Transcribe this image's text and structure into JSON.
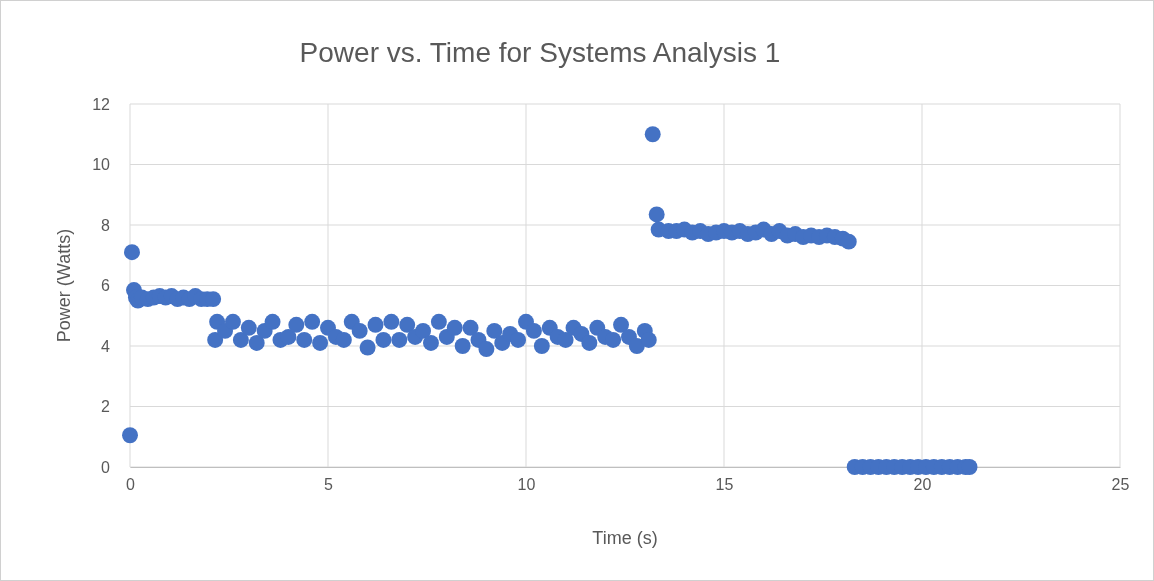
{
  "chart_data": {
    "type": "scatter",
    "title": "Power vs. Time for Systems Analysis 1",
    "xlabel": "Time (s)",
    "ylabel": "Power (Watts)",
    "xlim": [
      0,
      25
    ],
    "xticks": [
      0,
      5,
      10,
      15,
      20,
      25
    ],
    "ylim": [
      0,
      12
    ],
    "yticks": [
      0,
      2,
      4,
      6,
      8,
      10,
      12
    ],
    "grid": true,
    "marker": "circle",
    "series": [
      {
        "color": "#4472c4",
        "x": [
          0,
          0.05,
          0.1,
          0.15,
          0.2,
          0.3,
          0.45,
          0.6,
          0.75,
          0.9,
          1.05,
          1.2,
          1.35,
          1.5,
          1.65,
          1.8,
          1.95,
          2.1,
          2.15,
          2.2,
          2.4,
          2.6,
          2.8,
          3.0,
          3.2,
          3.4,
          3.6,
          3.8,
          4.0,
          4.2,
          4.4,
          4.6,
          4.8,
          5.0,
          5.2,
          5.4,
          5.6,
          5.8,
          6.0,
          6.2,
          6.4,
          6.6,
          6.8,
          7.0,
          7.2,
          7.4,
          7.6,
          7.8,
          8.0,
          8.2,
          8.4,
          8.6,
          8.8,
          9.0,
          9.2,
          9.4,
          9.6,
          9.8,
          10.0,
          10.2,
          10.4,
          10.6,
          10.8,
          11.0,
          11.2,
          11.4,
          11.6,
          11.8,
          12.0,
          12.2,
          12.4,
          12.6,
          12.8,
          13.0,
          13.1,
          13.2,
          13.3,
          13.35,
          13.6,
          13.8,
          14.0,
          14.2,
          14.4,
          14.6,
          14.8,
          15.0,
          15.2,
          15.4,
          15.6,
          15.8,
          16.0,
          16.2,
          16.4,
          16.6,
          16.8,
          17.0,
          17.2,
          17.4,
          17.6,
          17.8,
          18.0,
          18.15,
          18.3,
          18.5,
          18.7,
          18.9,
          19.1,
          19.3,
          19.5,
          19.7,
          19.9,
          20.1,
          20.3,
          20.5,
          20.7,
          20.9,
          21.1,
          21.2
        ],
        "values": [
          1.05,
          7.1,
          5.85,
          5.6,
          5.5,
          5.6,
          5.55,
          5.6,
          5.65,
          5.6,
          5.65,
          5.55,
          5.6,
          5.55,
          5.65,
          5.55,
          5.55,
          5.55,
          4.2,
          4.8,
          4.5,
          4.8,
          4.2,
          4.6,
          4.1,
          4.5,
          4.8,
          4.2,
          4.3,
          4.7,
          4.2,
          4.8,
          4.1,
          4.6,
          4.3,
          4.2,
          4.8,
          4.5,
          3.95,
          4.7,
          4.2,
          4.8,
          4.2,
          4.7,
          4.3,
          4.5,
          4.1,
          4.8,
          4.3,
          4.6,
          4.0,
          4.6,
          4.2,
          3.9,
          4.5,
          4.1,
          4.4,
          4.2,
          4.8,
          4.5,
          4.0,
          4.6,
          4.3,
          4.2,
          4.6,
          4.4,
          4.1,
          4.6,
          4.3,
          4.2,
          4.7,
          4.3,
          4.0,
          4.5,
          4.2,
          11.0,
          8.35,
          7.85,
          7.8,
          7.8,
          7.85,
          7.75,
          7.8,
          7.7,
          7.75,
          7.8,
          7.75,
          7.8,
          7.7,
          7.75,
          7.85,
          7.7,
          7.8,
          7.65,
          7.7,
          7.6,
          7.65,
          7.6,
          7.65,
          7.6,
          7.55,
          7.45,
          0,
          0,
          0,
          0,
          0,
          0,
          0,
          0,
          0,
          0,
          0,
          0,
          0,
          0,
          0,
          0
        ]
      }
    ]
  }
}
